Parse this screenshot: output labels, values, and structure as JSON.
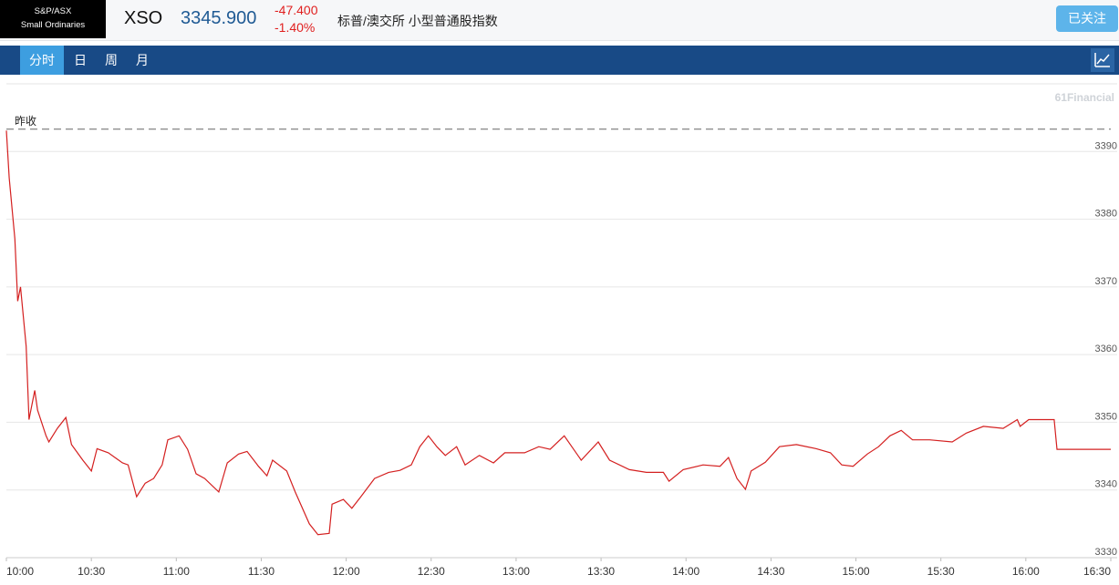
{
  "header": {
    "logo_line1": "S&P/ASX",
    "logo_line2": "Small Ordinaries",
    "symbol": "XSO",
    "price": "3345.900",
    "change": "-47.400",
    "change_pct": "-1.40%",
    "name": "标普/澳交所 小型普通股指数",
    "follow_button": "已关注"
  },
  "tabs": [
    "分时",
    "日",
    "周",
    "月"
  ],
  "chart_data": {
    "type": "line",
    "watermark": "61Financial",
    "prev_close_label": "昨收",
    "prev_close": 3393.3,
    "color": "#d42020",
    "x": [
      "10:00",
      "10:01",
      "10:03",
      "10:04",
      "10:05",
      "10:07",
      "10:08",
      "10:10",
      "10:11",
      "10:14",
      "10:15",
      "10:18",
      "10:21",
      "10:23",
      "10:27",
      "10:30",
      "10:32",
      "10:36",
      "10:41",
      "10:43",
      "10:46",
      "10:49",
      "10:52",
      "10:55",
      "10:57",
      "11:01",
      "11:04",
      "11:07",
      "11:10",
      "11:15",
      "11:18",
      "11:22",
      "11:25",
      "11:29",
      "11:32",
      "11:34",
      "11:39",
      "11:42",
      "11:47",
      "11:50",
      "11:54",
      "11:55",
      "11:59",
      "12:02",
      "12:05",
      "12:10",
      "12:15",
      "12:19",
      "12:23",
      "12:26",
      "12:29",
      "12:32",
      "12:35",
      "12:39",
      "12:42",
      "12:47",
      "12:52",
      "12:56",
      "13:03",
      "13:08",
      "13:12",
      "13:17",
      "13:23",
      "13:29",
      "13:33",
      "13:40",
      "13:46",
      "13:52",
      "13:54",
      "13:59",
      "14:06",
      "14:12",
      "14:15",
      "14:18",
      "14:21",
      "14:23",
      "14:28",
      "14:33",
      "14:39",
      "14:46",
      "14:51",
      "14:55",
      "14:59",
      "15:04",
      "15:08",
      "15:12",
      "15:16",
      "15:20",
      "15:26",
      "15:34",
      "15:39",
      "15:45",
      "15:52",
      "15:57",
      "15:58",
      "16:01",
      "16:10",
      "16:11",
      "16:30"
    ],
    "values": [
      3393.1,
      3386.1,
      3377.1,
      3367.9,
      3370,
      3361.2,
      3350.4,
      3354.7,
      3351.8,
      3348,
      3347.1,
      3349.1,
      3350.7,
      3346.7,
      3344.4,
      3342.8,
      3346.1,
      3345.5,
      3344,
      3343.7,
      3339,
      3341,
      3341.7,
      3343.7,
      3347.4,
      3348,
      3346,
      3342.4,
      3341.7,
      3339.7,
      3344,
      3345.3,
      3345.7,
      3343.5,
      3342.1,
      3344.4,
      3342.8,
      3339.7,
      3335,
      3333.4,
      3333.6,
      3337.9,
      3338.6,
      3337.3,
      3338.9,
      3341.7,
      3342.6,
      3342.9,
      3343.7,
      3346.4,
      3348,
      3346.4,
      3345.1,
      3346.4,
      3343.7,
      3345.1,
      3344,
      3345.5,
      3345.5,
      3346.4,
      3346,
      3348,
      3344.4,
      3347.1,
      3344.4,
      3343,
      3342.6,
      3342.6,
      3341.3,
      3343,
      3343.7,
      3343.5,
      3344.8,
      3341.7,
      3340.1,
      3342.8,
      3344.1,
      3346.4,
      3346.7,
      3346.1,
      3345.5,
      3343.7,
      3343.5,
      3345.3,
      3346.4,
      3348,
      3348.8,
      3347.4,
      3347.4,
      3347.1,
      3348.4,
      3349.4,
      3349.1,
      3350.4,
      3349.4,
      3350.4,
      3350.4,
      3346,
      3346
    ],
    "xlim": [
      "10:00",
      "16:30"
    ],
    "xticks": [
      "10:00",
      "10:30",
      "11:00",
      "11:30",
      "12:00",
      "12:30",
      "13:00",
      "13:30",
      "14:00",
      "14:30",
      "15:00",
      "15:30",
      "16:00",
      "16:30"
    ],
    "ylim": [
      3330,
      3400
    ],
    "yticks": [
      3330,
      3340,
      3350,
      3360,
      3370,
      3380,
      3390
    ],
    "grid": true
  }
}
